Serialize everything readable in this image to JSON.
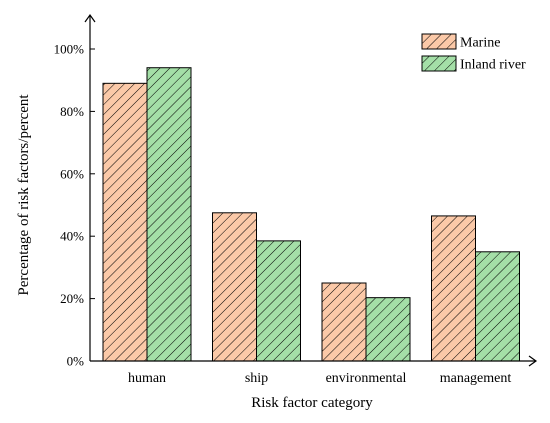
{
  "chart_data": {
    "type": "bar",
    "title": "",
    "xlabel": "Risk factor category",
    "ylabel": "Percentage of risk factors/percent",
    "categories": [
      "human",
      "ship",
      "environmental",
      "management"
    ],
    "series": [
      {
        "name": "Marine",
        "values": [
          89,
          47.5,
          25,
          46.5
        ]
      },
      {
        "name": "Inland river",
        "values": [
          94,
          38.5,
          20.3,
          35
        ]
      }
    ],
    "ylim": [
      0,
      100
    ],
    "yticks": [
      0,
      20,
      40,
      60,
      80,
      100
    ],
    "ytick_labels": [
      "0%",
      "20%",
      "40%",
      "60%",
      "80%",
      "100%"
    ],
    "grid": false,
    "legend_position": "top-right",
    "colors": {
      "Marine": "#fbc9a8",
      "Inland river": "#a4dfa7"
    },
    "hatch": "diagonal"
  }
}
